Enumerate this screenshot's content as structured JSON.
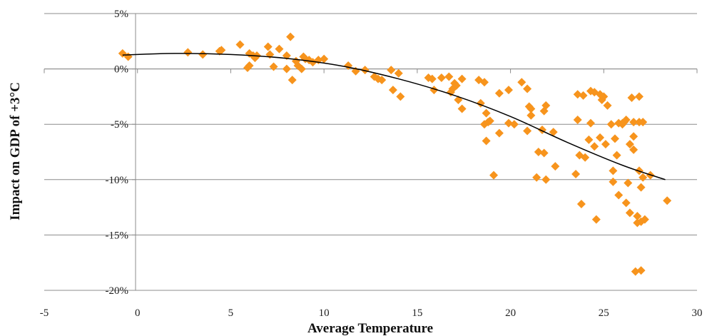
{
  "chart_data": {
    "type": "scatter",
    "title": "",
    "xlabel": "Average Temperature",
    "ylabel": "Impact on GDP of  +3°C",
    "xlim": [
      -5,
      30
    ],
    "ylim": [
      -20,
      5
    ],
    "x_ticks": [
      -5,
      0,
      5,
      10,
      15,
      20,
      25,
      30
    ],
    "y_ticks": [
      {
        "value": 5,
        "label": "5%"
      },
      {
        "value": 0,
        "label": "0%"
      },
      {
        "value": -5,
        "label": "-5%"
      },
      {
        "value": -10,
        "label": "-10%"
      },
      {
        "value": -15,
        "label": "-15%"
      },
      {
        "value": -20,
        "label": "-20%"
      }
    ],
    "grid": "horizontal",
    "legend": "none",
    "marker_color": "#f7941d",
    "fit_line_color": "#000000",
    "series": [
      {
        "marker": "diamond",
        "points": [
          [
            -0.8,
            1.4
          ],
          [
            -0.5,
            1.1
          ],
          [
            2.7,
            1.5
          ],
          [
            3.5,
            1.3
          ],
          [
            4.4,
            1.6
          ],
          [
            4.5,
            1.7
          ],
          [
            5.5,
            2.2
          ],
          [
            5.9,
            0.1
          ],
          [
            6.0,
            0.3
          ],
          [
            6.0,
            1.4
          ],
          [
            6.2,
            1.2
          ],
          [
            6.3,
            1.0
          ],
          [
            6.4,
            1.2
          ],
          [
            7.0,
            2.0
          ],
          [
            7.1,
            1.3
          ],
          [
            7.3,
            0.2
          ],
          [
            7.6,
            1.8
          ],
          [
            8.0,
            1.2
          ],
          [
            8.0,
            0.0
          ],
          [
            8.2,
            2.9
          ],
          [
            8.3,
            -1.0
          ],
          [
            8.5,
            0.7
          ],
          [
            8.6,
            0.3
          ],
          [
            8.8,
            0.0
          ],
          [
            8.9,
            1.1
          ],
          [
            9.0,
            0.9
          ],
          [
            9.2,
            0.8
          ],
          [
            9.4,
            0.6
          ],
          [
            9.7,
            0.8
          ],
          [
            10.0,
            0.9
          ],
          [
            11.3,
            0.3
          ],
          [
            11.7,
            -0.2
          ],
          [
            12.2,
            -0.1
          ],
          [
            12.7,
            -0.7
          ],
          [
            12.9,
            -0.9
          ],
          [
            13.1,
            -1.0
          ],
          [
            13.6,
            -0.1
          ],
          [
            13.7,
            -1.9
          ],
          [
            14.0,
            -0.4
          ],
          [
            14.1,
            -2.5
          ],
          [
            15.6,
            -0.8
          ],
          [
            15.8,
            -0.9
          ],
          [
            15.9,
            -1.9
          ],
          [
            16.3,
            -0.8
          ],
          [
            16.7,
            -0.7
          ],
          [
            16.8,
            -2.1
          ],
          [
            16.9,
            -1.8
          ],
          [
            17.0,
            -1.3
          ],
          [
            17.1,
            -1.5
          ],
          [
            17.2,
            -2.8
          ],
          [
            17.4,
            -0.9
          ],
          [
            17.4,
            -3.6
          ],
          [
            18.3,
            -1.0
          ],
          [
            18.4,
            -3.1
          ],
          [
            18.6,
            -1.2
          ],
          [
            18.6,
            -5.0
          ],
          [
            18.7,
            -4.0
          ],
          [
            18.7,
            -6.5
          ],
          [
            18.8,
            -4.8
          ],
          [
            18.9,
            -4.7
          ],
          [
            19.1,
            -9.6
          ],
          [
            19.4,
            -2.2
          ],
          [
            19.4,
            -5.8
          ],
          [
            19.9,
            -1.9
          ],
          [
            19.9,
            -4.9
          ],
          [
            20.2,
            -5.0
          ],
          [
            20.6,
            -1.2
          ],
          [
            20.9,
            -1.8
          ],
          [
            20.9,
            -5.6
          ],
          [
            21.0,
            -3.4
          ],
          [
            21.1,
            -4.2
          ],
          [
            21.1,
            -3.6
          ],
          [
            21.4,
            -9.8
          ],
          [
            21.5,
            -7.5
          ],
          [
            21.7,
            -5.5
          ],
          [
            21.8,
            -3.8
          ],
          [
            21.8,
            -7.6
          ],
          [
            21.9,
            -3.3
          ],
          [
            21.9,
            -10.0
          ],
          [
            22.3,
            -5.7
          ],
          [
            22.4,
            -8.8
          ],
          [
            23.5,
            -9.5
          ],
          [
            23.6,
            -2.3
          ],
          [
            23.6,
            -4.6
          ],
          [
            23.7,
            -7.8
          ],
          [
            23.8,
            -12.2
          ],
          [
            23.9,
            -2.4
          ],
          [
            24.0,
            -8.0
          ],
          [
            24.2,
            -6.4
          ],
          [
            24.3,
            -2.0
          ],
          [
            24.3,
            -4.9
          ],
          [
            24.5,
            -7.0
          ],
          [
            24.5,
            -2.1
          ],
          [
            24.6,
            -13.6
          ],
          [
            24.8,
            -2.3
          ],
          [
            24.8,
            -6.2
          ],
          [
            24.9,
            -2.8
          ],
          [
            25.0,
            -2.5
          ],
          [
            25.1,
            -6.8
          ],
          [
            25.2,
            -3.3
          ],
          [
            25.4,
            -5.0
          ],
          [
            25.5,
            -9.2
          ],
          [
            25.5,
            -10.2
          ],
          [
            25.6,
            -6.3
          ],
          [
            25.7,
            -7.8
          ],
          [
            25.8,
            -4.9
          ],
          [
            25.8,
            -11.4
          ],
          [
            26.0,
            -4.9
          ],
          [
            26.0,
            -5.0
          ],
          [
            26.1,
            -4.8
          ],
          [
            26.2,
            -4.6
          ],
          [
            26.2,
            -12.1
          ],
          [
            26.3,
            -10.3
          ],
          [
            26.4,
            -6.8
          ],
          [
            26.4,
            -13.0
          ],
          [
            26.5,
            -2.6
          ],
          [
            26.6,
            -4.8
          ],
          [
            26.6,
            -6.1
          ],
          [
            26.6,
            -7.3
          ],
          [
            26.7,
            -18.3
          ],
          [
            26.8,
            -13.3
          ],
          [
            26.8,
            -13.9
          ],
          [
            26.9,
            -2.5
          ],
          [
            26.9,
            -4.8
          ],
          [
            26.9,
            -9.2
          ],
          [
            27.0,
            -10.7
          ],
          [
            27.0,
            -18.2
          ],
          [
            27.0,
            -13.8
          ],
          [
            27.1,
            -4.8
          ],
          [
            27.1,
            -9.8
          ],
          [
            27.2,
            -13.6
          ],
          [
            27.5,
            -9.6
          ],
          [
            28.4,
            -11.9
          ]
        ]
      }
    ],
    "fit_curve": [
      [
        -0.8,
        1.25
      ],
      [
        2,
        1.4
      ],
      [
        5,
        1.3
      ],
      [
        8,
        0.95
      ],
      [
        11,
        0.25
      ],
      [
        14,
        -0.9
      ],
      [
        17,
        -2.4
      ],
      [
        20,
        -4.3
      ],
      [
        23,
        -6.6
      ],
      [
        26,
        -8.7
      ],
      [
        28.3,
        -10.0
      ]
    ]
  }
}
